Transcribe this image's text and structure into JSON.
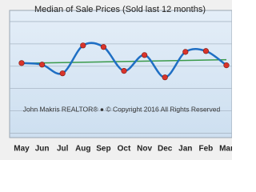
{
  "chart_data": {
    "type": "line",
    "title": "Median of Sale Prices (Sold last 12 months)",
    "watermark": "John Makris REALTOR®  ●  © Copyright 2016 All Rights Reserved",
    "categories": [
      "May",
      "Jun",
      "Jul",
      "Aug",
      "Sep",
      "Oct",
      "Nov",
      "Dec",
      "Jan",
      "Feb",
      "Mar"
    ],
    "series": [
      {
        "color": "#1f6fc4",
        "marker_color": "#d9342b",
        "values": [
          3.14,
          3.07,
          2.68,
          3.93,
          3.86,
          2.79,
          3.5,
          2.5,
          3.64,
          3.68,
          3.04
        ]
      }
    ],
    "trend": {
      "color": "#3a9a4a",
      "values": [
        3.13,
        3.29
      ]
    },
    "ylim": [
      -0.2,
      5.5
    ],
    "yticks": [
      0,
      1,
      2,
      3,
      4,
      5
    ],
    "grid": true
  }
}
